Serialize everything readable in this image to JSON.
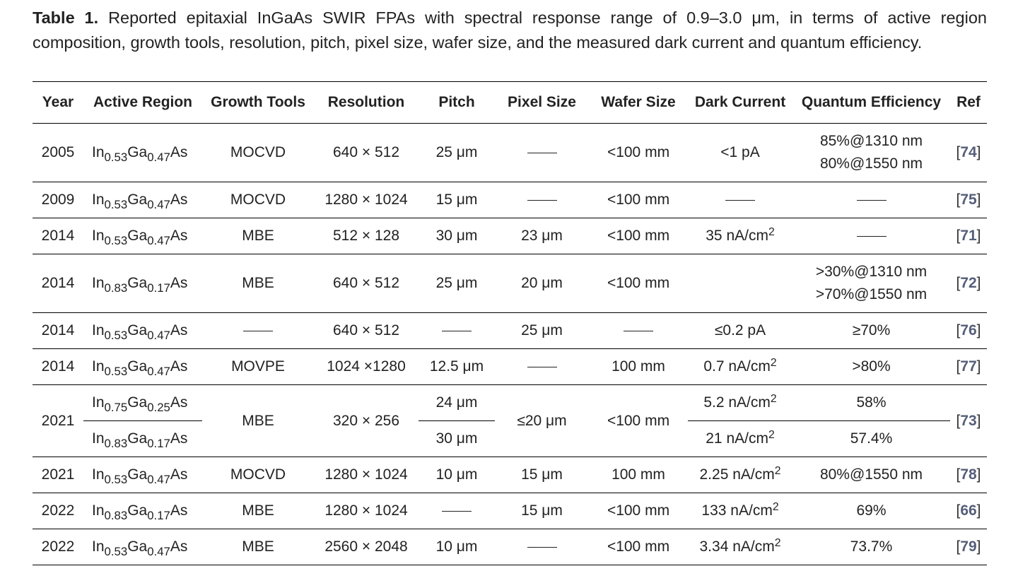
{
  "caption": {
    "label": "Table 1.",
    "text": " Reported epitaxial InGaAs SWIR FPAs with spectral response range of 0.9–3.0 μm, in terms of active region composition, growth tools, resolution, pitch, pixel size, wafer size, and the measured dark current and quantum efficiency."
  },
  "headers": [
    "Year",
    "Active Region",
    "Growth Tools",
    "Resolution",
    "Pitch",
    "Pixel Size",
    "Wafer Size",
    "Dark Current",
    "Quantum Efficiency",
    "Ref"
  ],
  "rows": [
    {
      "year": "2005",
      "in": "0.53",
      "ga": "0.47",
      "tool": "MOCVD",
      "res": "640 × 512",
      "pitch": "25 μm",
      "pixel": "——",
      "wafer": "<100 mm",
      "dark": "<1 pA",
      "qe1": "85%@1310 nm",
      "qe2": "80%@1550 nm",
      "ref": "74"
    },
    {
      "year": "2009",
      "in": "0.53",
      "ga": "0.47",
      "tool": "MOCVD",
      "res": "1280 × 1024",
      "pitch": "15 μm",
      "pixel": "——",
      "wafer": "<100 mm",
      "dark": "——",
      "qe": "——",
      "ref": "75"
    },
    {
      "year": "2014",
      "in": "0.53",
      "ga": "0.47",
      "tool": "MBE",
      "res": "512 × 128",
      "pitch": "30 μm",
      "pixel": "23 μm",
      "wafer": "<100 mm",
      "dark": "35 nA/cm",
      "qe": "——",
      "ref": "71"
    },
    {
      "year": "2014",
      "in": "0.83",
      "ga": "0.17",
      "tool": "MBE",
      "res": "640 × 512",
      "pitch": "25 μm",
      "pixel": "20 μm",
      "wafer": "<100 mm",
      "dark": "",
      "qe1": ">30%@1310 nm",
      "qe2": ">70%@1550 nm",
      "ref": "72"
    },
    {
      "year": "2014",
      "in": "0.53",
      "ga": "0.47",
      "tool": "——",
      "res": "640 × 512",
      "pitch": "——",
      "pixel": "25 μm",
      "wafer": "——",
      "dark": "≤0.2 pA",
      "qe": "≥70%",
      "ref": "76"
    },
    {
      "year": "2014",
      "in": "0.53",
      "ga": "0.47",
      "tool": "MOVPE",
      "res": "1024 ×1280",
      "pitch": "12.5 μm",
      "pixel": "——",
      "wafer": "100 mm",
      "dark": "0.7 nA/cm",
      "qe": ">80%",
      "ref": "77"
    },
    {
      "year": "2021",
      "a_in": "0.75",
      "a_ga": "0.25",
      "b_in": "0.83",
      "b_ga": "0.17",
      "tool": "MBE",
      "res": "320 × 256",
      "pitch_a": "24 μm",
      "pitch_b": "30 μm",
      "pixel": "≤20 μm",
      "wafer": "<100 mm",
      "dark_a": "5.2 nA/cm",
      "dark_b": "21 nA/cm",
      "qe_a": "58%",
      "qe_b": "57.4%",
      "ref": "73"
    },
    {
      "year": "2021",
      "in": "0.53",
      "ga": "0.47",
      "tool": "MOCVD",
      "res": "1280 × 1024",
      "pitch": "10 μm",
      "pixel": "15 μm",
      "wafer": "100 mm",
      "dark": "2.25 nA/cm",
      "qe": "80%@1550 nm",
      "ref": "78"
    },
    {
      "year": "2022",
      "in": "0.83",
      "ga": "0.17",
      "tool": "MBE",
      "res": "1280 × 1024",
      "pitch": "——",
      "pixel": "15 μm",
      "wafer": "<100 mm",
      "dark": "133 nA/cm",
      "qe": "69%",
      "ref": "66"
    },
    {
      "year": "2022",
      "in": "0.53",
      "ga": "0.47",
      "tool": "MBE",
      "res": "2560 × 2048",
      "pitch": "10 μm",
      "pixel": "——",
      "wafer": "<100 mm",
      "dark": "3.34 nA/cm",
      "qe": "73.7%",
      "ref": "79"
    }
  ],
  "symbols": {
    "in": "In",
    "ga": "Ga",
    "as": "As",
    "sq": "2",
    "lb": "[",
    "rb": "]"
  }
}
